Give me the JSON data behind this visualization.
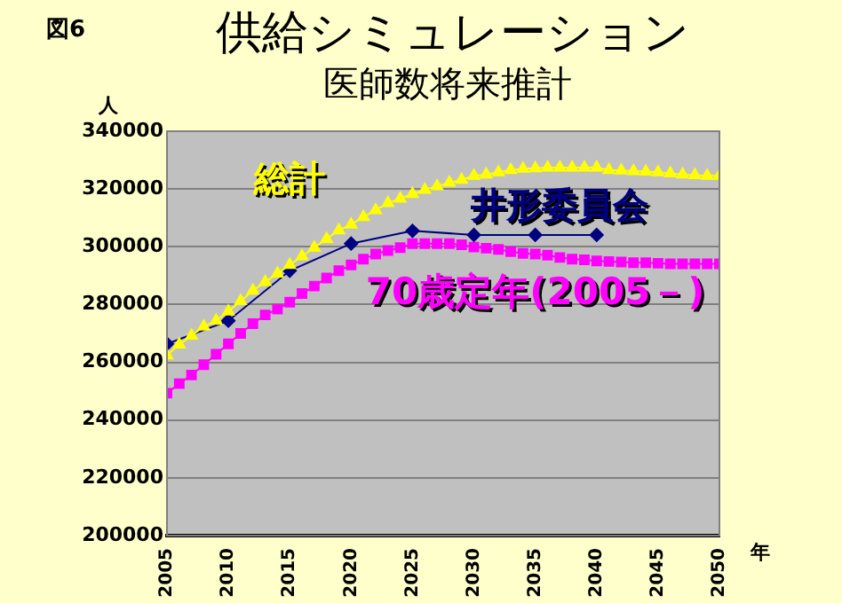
{
  "chart_data": {
    "type": "line",
    "title": "供給シミュレーション",
    "subtitle": "医師数将来推計",
    "ylabel": "人",
    "xlabel": "年",
    "annotations": [
      "図6"
    ],
    "xlim": [
      2005,
      2050
    ],
    "xticks": [
      2005,
      2010,
      2015,
      2020,
      2025,
      2030,
      2035,
      2040,
      2045,
      2050
    ],
    "ylim": [
      200000,
      340000
    ],
    "yticks": [
      200000,
      220000,
      240000,
      260000,
      280000,
      300000,
      320000,
      340000
    ],
    "grid": "y",
    "legend": false,
    "line_style": "solid",
    "series": [
      {
        "name": "総計",
        "color": "#ffff00",
        "marker": "triangle",
        "x": [
          2005,
          2006,
          2007,
          2008,
          2009,
          2010,
          2011,
          2012,
          2013,
          2014,
          2015,
          2016,
          2017,
          2018,
          2019,
          2020,
          2021,
          2022,
          2023,
          2024,
          2025,
          2026,
          2027,
          2028,
          2029,
          2030,
          2031,
          2032,
          2033,
          2034,
          2035,
          2036,
          2037,
          2038,
          2039,
          2040,
          2041,
          2042,
          2043,
          2044,
          2045,
          2046,
          2047,
          2048,
          2049,
          2050
        ],
        "values": [
          262400,
          266200,
          269200,
          272400,
          274400,
          277600,
          281200,
          284800,
          287800,
          290700,
          293700,
          296700,
          299700,
          302700,
          305700,
          307700,
          310300,
          312700,
          315100,
          316700,
          318300,
          319700,
          321000,
          322200,
          323200,
          324600,
          325000,
          325800,
          326600,
          327000,
          327200,
          327400,
          327400,
          327400,
          327400,
          327400,
          326600,
          326400,
          326200,
          326000,
          325800,
          325400,
          325000,
          324800,
          324600,
          324600
        ]
      },
      {
        "name": "井形委員会",
        "color": "#000080",
        "marker": "diamond",
        "x": [
          2005,
          2010,
          2015,
          2020,
          2025,
          2030,
          2035,
          2040
        ],
        "values": [
          266400,
          274400,
          291700,
          301100,
          305500,
          304100,
          304100,
          304100
        ]
      },
      {
        "name": "70歳定年(2005－)",
        "color": "#ff00ff",
        "marker": "square",
        "x": [
          2005,
          2006,
          2007,
          2008,
          2009,
          2010,
          2011,
          2012,
          2013,
          2014,
          2015,
          2016,
          2017,
          2018,
          2019,
          2020,
          2021,
          2022,
          2023,
          2024,
          2025,
          2026,
          2027,
          2028,
          2029,
          2030,
          2031,
          2032,
          2033,
          2034,
          2035,
          2036,
          2037,
          2038,
          2039,
          2040,
          2041,
          2042,
          2043,
          2044,
          2045,
          2046,
          2047,
          2048,
          2049,
          2050
        ],
        "values": [
          249300,
          252600,
          255600,
          259200,
          262800,
          266400,
          270000,
          273400,
          276400,
          278400,
          280800,
          283800,
          286400,
          289200,
          291700,
          293700,
          295700,
          297500,
          298700,
          299700,
          301100,
          301100,
          301100,
          301100,
          300700,
          299900,
          299500,
          299100,
          298300,
          297700,
          297500,
          297100,
          296300,
          295700,
          295500,
          295100,
          294900,
          294700,
          294500,
          294500,
          294300,
          294100,
          294100,
          294100,
          294100,
          294100
        ]
      }
    ]
  }
}
